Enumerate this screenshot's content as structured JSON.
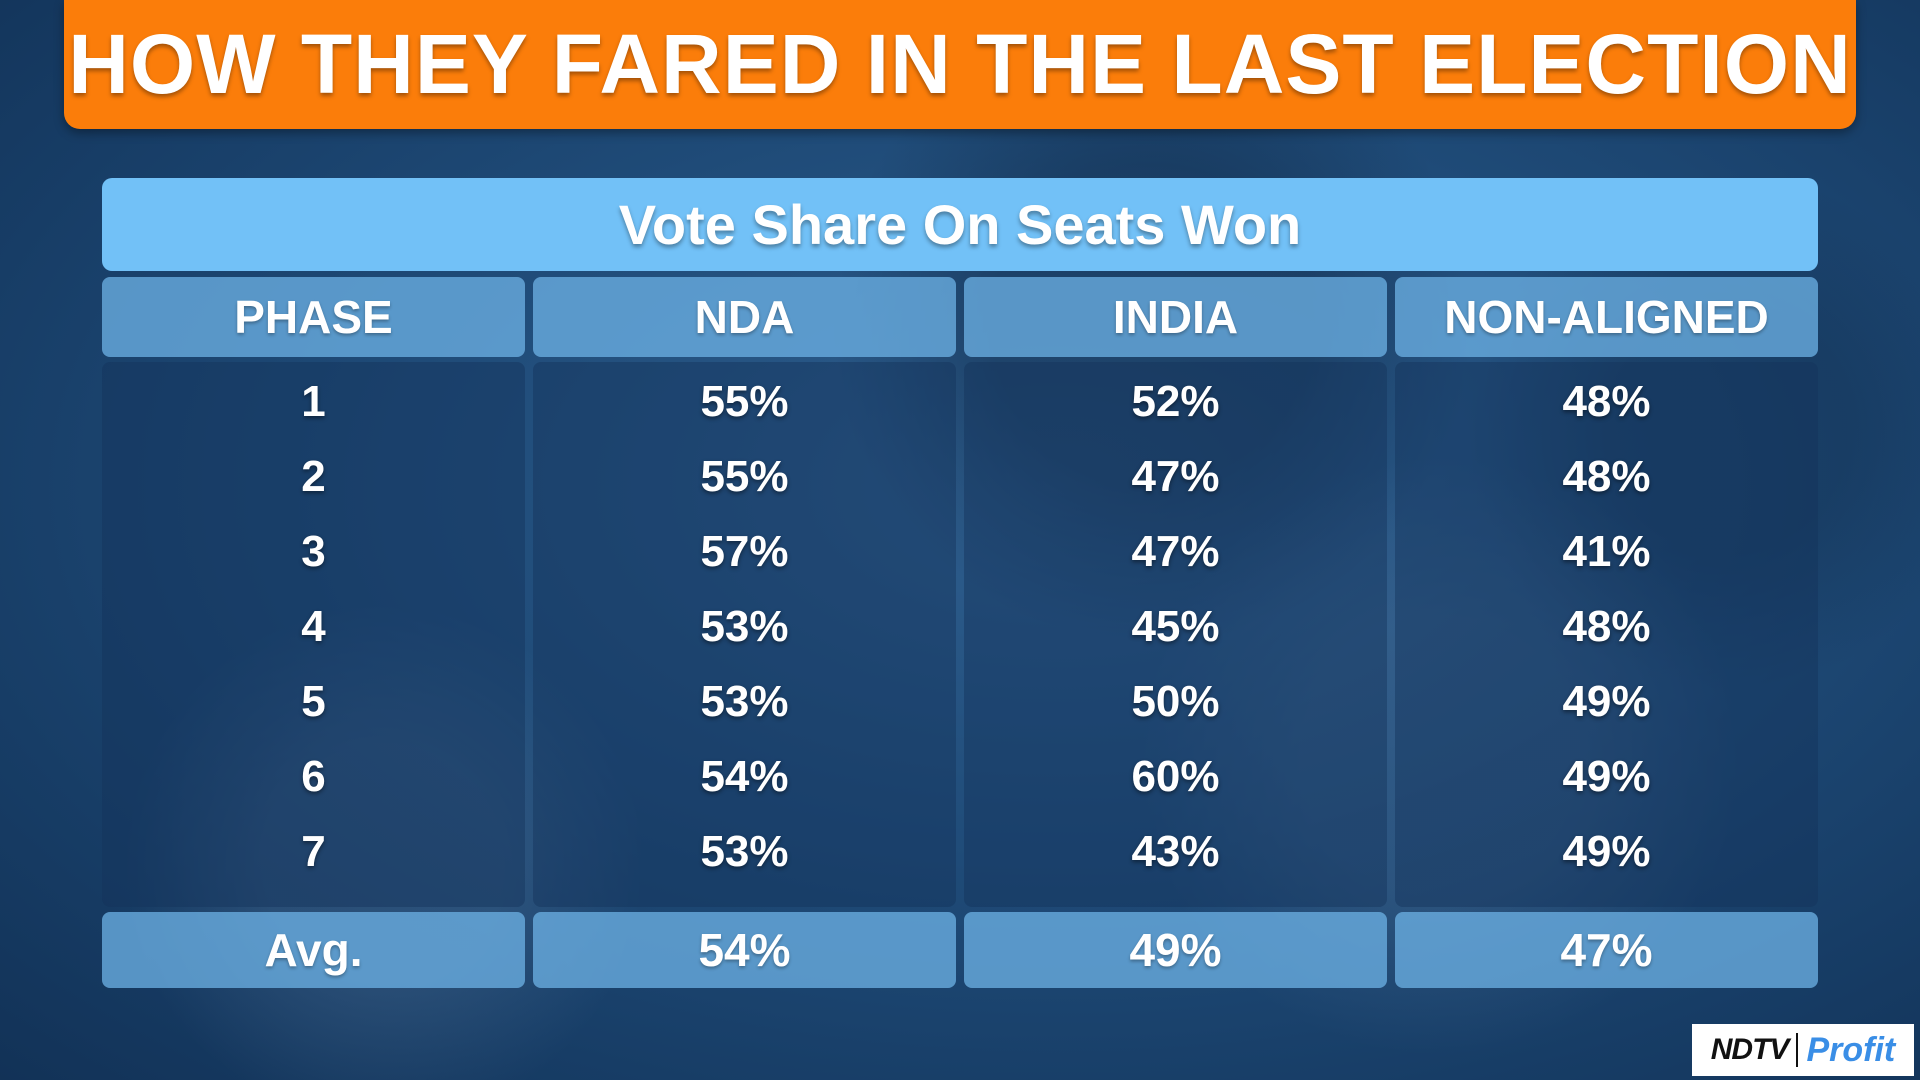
{
  "header": {
    "title": "HOW THEY FARED IN THE LAST ELECTION"
  },
  "table": {
    "subtitle": "Vote Share On Seats Won"
  },
  "colors": {
    "banner": "#fb7d0a",
    "subtitle_bar": "#72c1f7",
    "header_cells": "#6aaee2",
    "profit": "#3a8ee6"
  },
  "chart_data": {
    "type": "table",
    "title": "HOW THEY FARED IN THE LAST ELECTION",
    "subtitle": "Vote Share On Seats Won",
    "columns": [
      "PHASE",
      "NDA",
      "INDIA",
      "NON-ALIGNED"
    ],
    "rows": [
      [
        "1",
        "55%",
        "52%",
        "48%"
      ],
      [
        "2",
        "55%",
        "47%",
        "48%"
      ],
      [
        "3",
        "57%",
        "47%",
        "41%"
      ],
      [
        "4",
        "53%",
        "45%",
        "48%"
      ],
      [
        "5",
        "53%",
        "50%",
        "49%"
      ],
      [
        "6",
        "54%",
        "60%",
        "49%"
      ],
      [
        "7",
        "53%",
        "43%",
        "49%"
      ]
    ],
    "average": [
      "Avg.",
      "54%",
      "49%",
      "47%"
    ]
  },
  "logo": {
    "brand": "NDTV",
    "product": "Profit"
  }
}
